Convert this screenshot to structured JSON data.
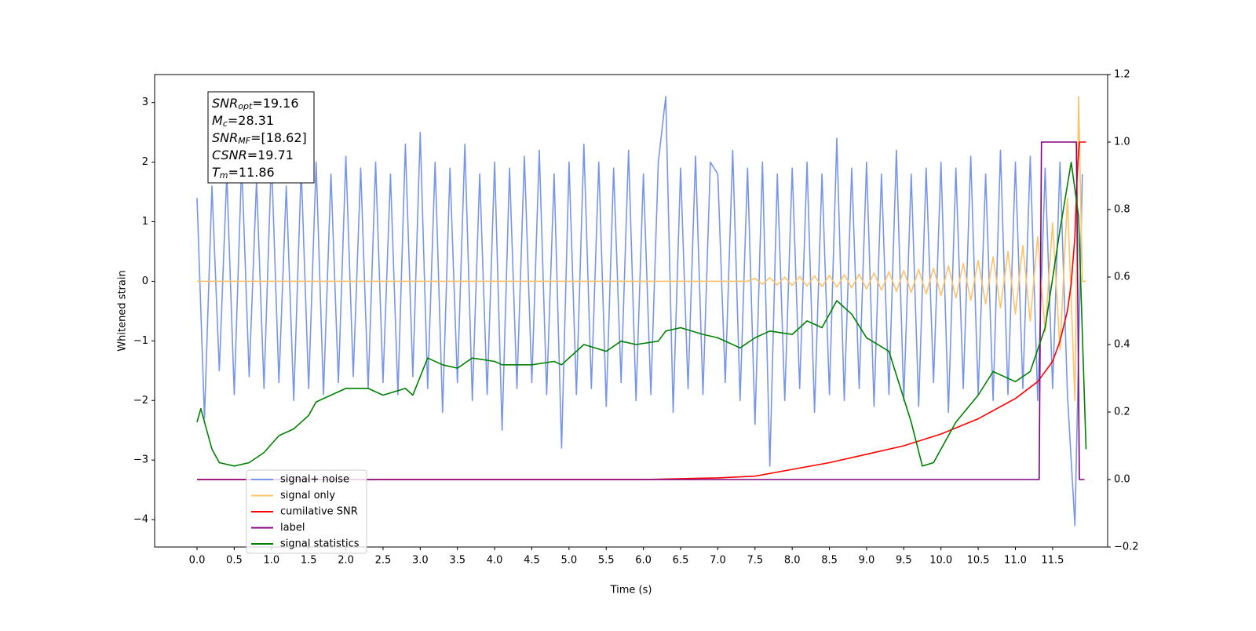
{
  "chart_data": {
    "type": "line",
    "xlabel": "Time (s)",
    "ylabel": "Whitened strain",
    "xlim": [
      -0.57,
      12.24
    ],
    "ylim": [
      -4.46,
      3.47
    ],
    "y2lim": [
      -0.2,
      1.2
    ],
    "xticks": [
      {
        "value": 0,
        "label": "0.0"
      },
      0.5,
      {
        "value": 1,
        "label": "1.0"
      },
      1.5,
      {
        "value": 2,
        "label": "2.0"
      },
      2.5,
      {
        "value": 3,
        "label": "3.0"
      },
      3.5,
      {
        "value": 4,
        "label": "4.0"
      },
      4.5,
      {
        "value": 5,
        "label": "5.0"
      },
      5.5,
      {
        "value": 6,
        "label": "6.0"
      },
      6.5,
      {
        "value": 7,
        "label": "7.0"
      },
      7.5,
      {
        "value": 8,
        "label": "8.0"
      },
      8.5,
      {
        "value": 9,
        "label": "9.0"
      },
      9.5,
      {
        "value": 10,
        "label": "10.0"
      },
      10.5,
      {
        "value": 11,
        "label": "11.0"
      },
      11.5
    ],
    "yticks": [
      {
        "value": -4,
        "label": "−4"
      },
      {
        "value": -3,
        "label": "−3"
      },
      {
        "value": -2,
        "label": "−2"
      },
      {
        "value": -1,
        "label": "−1"
      },
      0,
      1,
      2,
      3
    ],
    "y2ticks": [
      {
        "value": -0.2,
        "label": "−0.2"
      },
      {
        "value": 0,
        "label": "0.0"
      },
      0.2,
      0.4,
      0.6,
      0.8,
      {
        "value": 1,
        "label": "1.0"
      },
      1.2
    ],
    "legend_loc": "lower left",
    "annotations": [
      {
        "symbol": "SNR",
        "subscript": "opt",
        "text": "=19.16"
      },
      {
        "symbol": "M",
        "subscript": "c",
        "text": "=28.31"
      },
      {
        "symbol": "SNR",
        "subscript": "MF",
        "text": "=[18.62]"
      },
      {
        "symbol": "CSNR",
        "subscript": null,
        "text": "=19.71"
      },
      {
        "symbol": "T",
        "subscript": "m",
        "text": "=11.86"
      }
    ],
    "series": [
      {
        "name": "signal+ noise",
        "color": "#7896e8",
        "x": [
          0,
          0.1,
          0.2,
          0.3,
          0.4,
          0.5,
          0.6,
          0.7,
          0.8,
          0.9,
          1,
          1.1,
          1.2,
          1.3,
          1.4,
          1.5,
          1.6,
          1.7,
          1.8,
          1.9,
          2,
          2.1,
          2.2,
          2.3,
          2.4,
          2.5,
          2.6,
          2.7,
          2.8,
          2.9,
          3,
          3.1,
          3.2,
          3.3,
          3.4,
          3.5,
          3.6,
          3.7,
          3.8,
          3.9,
          4,
          4.1,
          4.2,
          4.3,
          4.4,
          4.5,
          4.6,
          4.7,
          4.8,
          4.9,
          5,
          5.1,
          5.2,
          5.3,
          5.4,
          5.5,
          5.6,
          5.7,
          5.8,
          5.9,
          6,
          6.1,
          6.2,
          6.3,
          6.4,
          6.5,
          6.6,
          6.7,
          6.8,
          6.9,
          7,
          7.1,
          7.2,
          7.3,
          7.4,
          7.5,
          7.6,
          7.7,
          7.8,
          7.9,
          8,
          8.1,
          8.2,
          8.3,
          8.4,
          8.5,
          8.6,
          8.7,
          8.8,
          8.9,
          9,
          9.1,
          9.2,
          9.3,
          9.4,
          9.5,
          9.6,
          9.7,
          9.8,
          9.9,
          10,
          10.1,
          10.2,
          10.3,
          10.4,
          10.5,
          10.6,
          10.7,
          10.8,
          10.9,
          11,
          11.1,
          11.2,
          11.3,
          11.4,
          11.5,
          11.6,
          11.7,
          11.8,
          11.9
        ],
        "values": [
          1.4,
          -2.3,
          1.6,
          -1.5,
          1.8,
          -1.9,
          2.0,
          -1.6,
          1.7,
          -1.8,
          2.1,
          -1.7,
          1.6,
          -2.0,
          1.9,
          -1.8,
          2.0,
          -1.9,
          1.8,
          -1.7,
          2.1,
          -1.6,
          1.9,
          -1.8,
          2.0,
          -1.7,
          1.8,
          -1.9,
          2.3,
          -1.6,
          2.5,
          -1.8,
          2.0,
          -2.2,
          1.9,
          -1.7,
          2.3,
          -2.0,
          1.8,
          -1.9,
          2.0,
          -2.5,
          1.9,
          -1.8,
          2.1,
          -1.7,
          2.2,
          -1.9,
          1.8,
          -2.8,
          2.0,
          -1.9,
          2.3,
          -1.8,
          2.0,
          -2.1,
          1.9,
          -1.7,
          2.2,
          -2.0,
          1.8,
          -1.9,
          2.0,
          3.1,
          -2.2,
          1.9,
          -1.8,
          2.1,
          -1.9,
          2.0,
          1.8,
          -1.7,
          2.2,
          -2.0,
          1.9,
          -2.4,
          2.0,
          -3.1,
          1.8,
          -2.0,
          1.9,
          -1.8,
          2.0,
          -2.2,
          1.8,
          -1.9,
          2.4,
          -2.0,
          1.9,
          -1.8,
          2.0,
          -2.1,
          1.8,
          -1.9,
          2.2,
          -2.0,
          1.8,
          -2.1,
          1.9,
          -1.7,
          2.0,
          -2.2,
          1.9,
          -1.8,
          2.1,
          -1.9,
          1.8,
          -2.0,
          2.2,
          -1.9,
          2.0,
          -1.8,
          2.1,
          -2.0,
          1.9,
          -1.8,
          2.0,
          -1.9,
          -4.1,
          1.8
        ]
      },
      {
        "name": "signal only",
        "color": "#ffc266",
        "x": [
          0,
          7.4,
          7.5,
          7.6,
          7.7,
          7.8,
          7.9,
          8,
          8.1,
          8.2,
          8.3,
          8.4,
          8.5,
          8.6,
          8.7,
          8.8,
          8.9,
          9,
          9.1,
          9.2,
          9.3,
          9.4,
          9.5,
          9.6,
          9.7,
          9.8,
          9.9,
          10,
          10.1,
          10.2,
          10.3,
          10.4,
          10.5,
          10.6,
          10.7,
          10.8,
          10.9,
          11,
          11.1,
          11.2,
          11.3,
          11.4,
          11.5,
          11.6,
          11.7,
          11.8,
          11.85,
          11.9,
          11.95
        ],
        "values": [
          0,
          0,
          0.05,
          -0.05,
          0.06,
          -0.06,
          0.07,
          -0.07,
          0.08,
          -0.08,
          0.09,
          -0.09,
          0.1,
          -0.1,
          0.11,
          -0.11,
          0.12,
          -0.13,
          0.14,
          -0.15,
          0.16,
          -0.17,
          0.18,
          -0.19,
          0.2,
          -0.21,
          0.22,
          -0.24,
          0.26,
          -0.28,
          0.3,
          -0.32,
          0.35,
          -0.38,
          0.41,
          -0.45,
          0.5,
          -0.55,
          0.6,
          -0.67,
          0.75,
          -0.85,
          0.98,
          -1.15,
          1.4,
          -2.0,
          3.1,
          0,
          0
        ]
      },
      {
        "name": "cumilative SNR",
        "color": "#ff0000",
        "axis": "y2",
        "x": [
          0,
          6,
          7,
          7.5,
          8,
          8.5,
          9,
          9.5,
          10,
          10.5,
          11,
          11.3,
          11.5,
          11.6,
          11.7,
          11.75,
          11.8,
          11.83,
          11.86,
          11.95
        ],
        "values": [
          0,
          0,
          0.005,
          0.01,
          0.03,
          0.05,
          0.075,
          0.1,
          0.135,
          0.18,
          0.24,
          0.29,
          0.35,
          0.41,
          0.5,
          0.58,
          0.72,
          0.9,
          1.0,
          1.0
        ]
      },
      {
        "name": "label",
        "color": "#800080",
        "axis": "y2",
        "x": [
          0,
          11.32,
          11.35,
          11.82,
          11.86,
          11.93
        ],
        "values": [
          0,
          0,
          1,
          1,
          0,
          0
        ]
      },
      {
        "name": "signal statistics",
        "color": "#008000",
        "axis": "y2",
        "x": [
          0,
          0.05,
          0.2,
          0.3,
          0.5,
          0.7,
          0.9,
          1.1,
          1.3,
          1.5,
          1.6,
          1.8,
          2,
          2.3,
          2.5,
          2.8,
          2.9,
          3.1,
          3.3,
          3.5,
          3.7,
          4,
          4.1,
          4.5,
          4.8,
          4.9,
          5.2,
          5.5,
          5.7,
          5.9,
          6.2,
          6.3,
          6.5,
          6.8,
          7,
          7.3,
          7.5,
          7.7,
          8,
          8.2,
          8.4,
          8.6,
          8.8,
          9,
          9.3,
          9.6,
          9.75,
          9.9,
          10.2,
          10.5,
          10.7,
          11,
          11.2,
          11.4,
          11.6,
          11.75,
          11.85,
          11.95
        ],
        "values": [
          0.17,
          0.21,
          0.09,
          0.05,
          0.04,
          0.05,
          0.08,
          0.13,
          0.15,
          0.19,
          0.23,
          0.25,
          0.27,
          0.27,
          0.25,
          0.27,
          0.25,
          0.36,
          0.34,
          0.33,
          0.36,
          0.35,
          0.34,
          0.34,
          0.35,
          0.34,
          0.4,
          0.38,
          0.41,
          0.4,
          0.41,
          0.44,
          0.45,
          0.43,
          0.42,
          0.39,
          0.42,
          0.44,
          0.43,
          0.47,
          0.45,
          0.53,
          0.49,
          0.42,
          0.38,
          0.17,
          0.04,
          0.05,
          0.17,
          0.25,
          0.32,
          0.29,
          0.32,
          0.45,
          0.74,
          0.94,
          0.78,
          0.09
        ]
      }
    ]
  }
}
